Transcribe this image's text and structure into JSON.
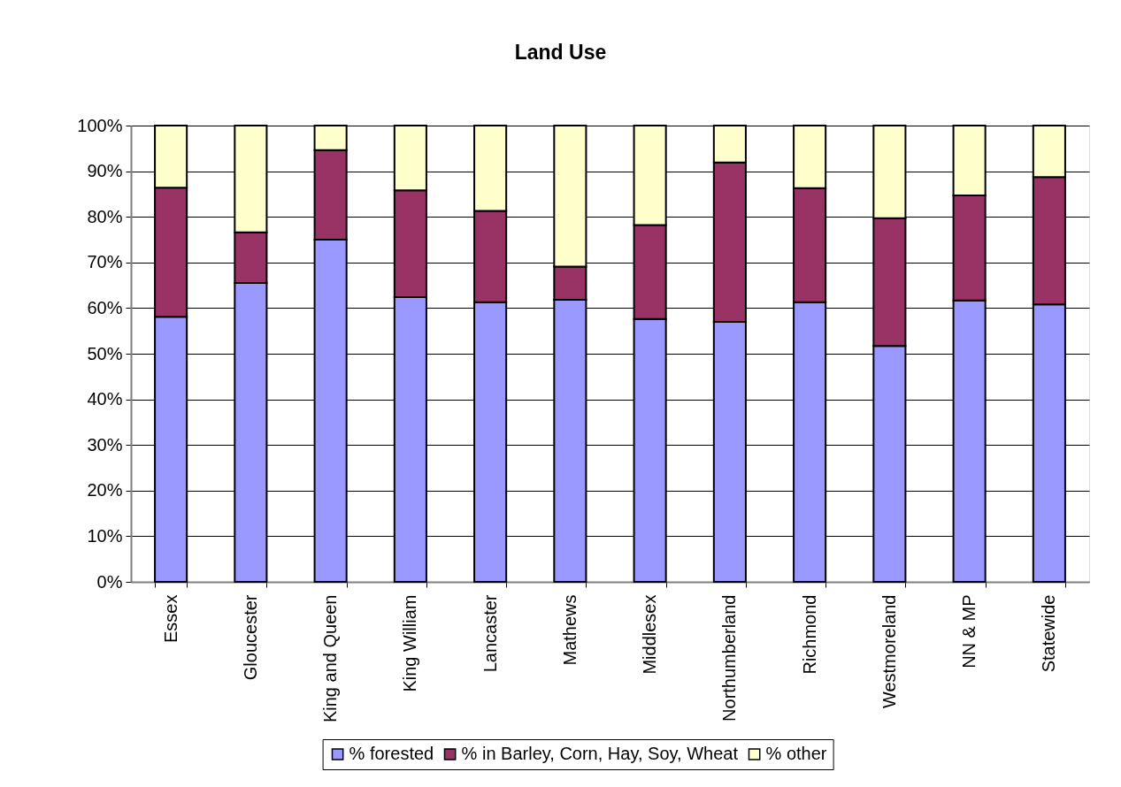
{
  "chart_data": {
    "type": "bar",
    "title": "Land Use",
    "stacked": true,
    "categories": [
      "Essex",
      "Gloucester",
      "King and Queen",
      "King William",
      "Lancaster",
      "Mathews",
      "Middlesex",
      "Northumberland",
      "Richmond",
      "Westmoreland",
      "NN & MP",
      "Statewide"
    ],
    "series": [
      {
        "name": "% forested",
        "color": "#9999ff",
        "values": [
          58.1,
          65.5,
          75.0,
          62.4,
          61.3,
          61.8,
          57.6,
          57.0,
          61.3,
          51.7,
          61.7,
          60.8
        ]
      },
      {
        "name": "% in Barley, Corn, Hay, Soy, Wheat",
        "color": "#993366",
        "values": [
          28.3,
          11.1,
          19.6,
          23.4,
          20.0,
          7.3,
          20.6,
          34.9,
          25.0,
          28.0,
          23.0,
          27.9
        ]
      },
      {
        "name": "% other",
        "color": "#ffffcc",
        "values": [
          13.6,
          23.4,
          5.4,
          14.2,
          18.7,
          30.9,
          21.8,
          8.1,
          13.7,
          20.3,
          15.3,
          11.3
        ]
      }
    ],
    "ylim": [
      0,
      100
    ],
    "yticks": [
      {
        "value": 0,
        "label": "0%"
      },
      {
        "value": 10,
        "label": "10%"
      },
      {
        "value": 20,
        "label": "20%"
      },
      {
        "value": 30,
        "label": "30%"
      },
      {
        "value": 40,
        "label": "40%"
      },
      {
        "value": 50,
        "label": "50%"
      },
      {
        "value": 60,
        "label": "60%"
      },
      {
        "value": 70,
        "label": "70%"
      },
      {
        "value": 80,
        "label": "80%"
      },
      {
        "value": 90,
        "label": "90%"
      },
      {
        "value": 100,
        "label": "100%"
      }
    ],
    "grid": "y",
    "legend": "bottom"
  }
}
